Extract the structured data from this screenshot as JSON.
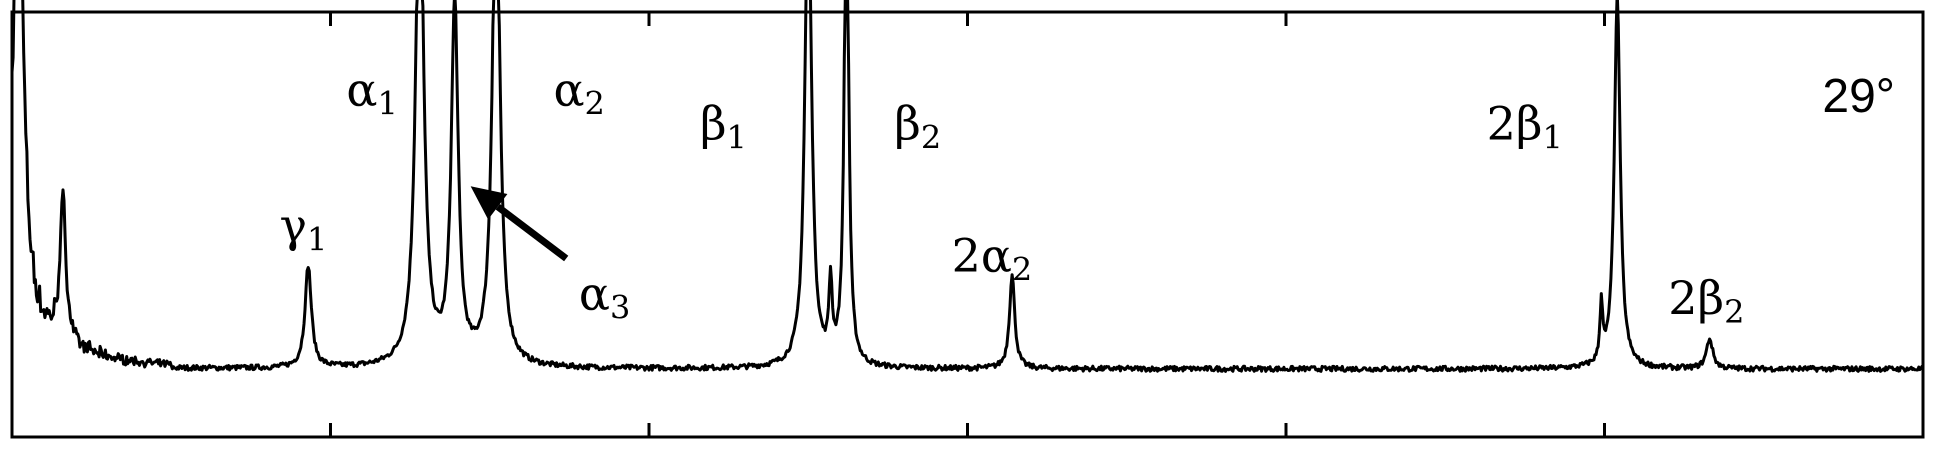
{
  "chart_data": {
    "type": "line",
    "title": "",
    "xlabel": "",
    "ylabel": "",
    "xlim": [
      0,
      6
    ],
    "ylim": [
      0,
      1
    ],
    "grid": false,
    "ticks_x": [
      1,
      2,
      3,
      4,
      5
    ],
    "angle_label": "29°",
    "line_color": "#000000",
    "baseline": 0.16,
    "series": [
      {
        "peaks": [
          {
            "x": 0.02,
            "h": 1.2,
            "w": 0.018
          },
          {
            "x": 0.16,
            "h": 0.33,
            "w": 0.012
          },
          {
            "x": 0.93,
            "h": 0.24,
            "w": 0.012
          },
          {
            "x": 1.28,
            "h": 1.2,
            "w": 0.015
          },
          {
            "x": 1.39,
            "h": 0.85,
            "w": 0.013
          },
          {
            "x": 1.52,
            "h": 1.2,
            "w": 0.014
          },
          {
            "x": 2.5,
            "h": 1.2,
            "w": 0.012
          },
          {
            "x": 2.57,
            "h": 0.18,
            "w": 0.006
          },
          {
            "x": 2.62,
            "h": 1.2,
            "w": 0.008
          },
          {
            "x": 3.14,
            "h": 0.22,
            "w": 0.01
          },
          {
            "x": 4.99,
            "h": 0.14,
            "w": 0.005
          },
          {
            "x": 5.04,
            "h": 0.88,
            "w": 0.011
          },
          {
            "x": 5.33,
            "h": 0.07,
            "w": 0.012
          }
        ]
      }
    ],
    "annotations": [
      {
        "greek": "α",
        "sub": "1",
        "x": 1.05,
        "y": 0.78
      },
      {
        "greek": "α",
        "sub": "2",
        "x": 1.7,
        "y": 0.78
      },
      {
        "greek": "β",
        "sub": "1",
        "x": 2.16,
        "y": 0.7
      },
      {
        "greek": "β",
        "sub": "2",
        "x": 2.77,
        "y": 0.7
      },
      {
        "greek": "2β",
        "sub": "1",
        "x": 4.63,
        "y": 0.7
      },
      {
        "greek": "γ",
        "sub": "1",
        "x": 0.84,
        "y": 0.46
      },
      {
        "greek": "2α",
        "sub": "2",
        "x": 2.95,
        "y": 0.39
      },
      {
        "greek": "α",
        "sub": "3",
        "x": 1.78,
        "y": 0.3
      },
      {
        "greek": "2β",
        "sub": "2",
        "x": 5.2,
        "y": 0.29
      }
    ],
    "arrow": {
      "x1": 1.74,
      "y1": 0.42,
      "x2": 1.44,
      "y2": 0.59
    }
  }
}
